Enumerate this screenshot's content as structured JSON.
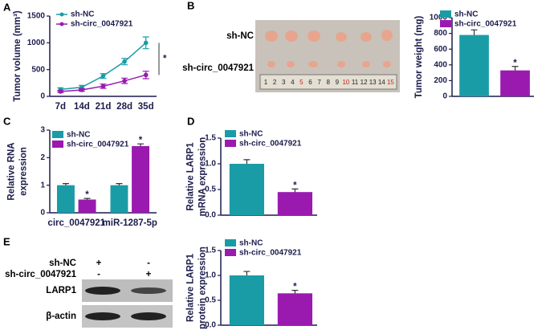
{
  "panels": [
    "A",
    "B",
    "C",
    "D",
    "E"
  ],
  "tumor_photo": {
    "rows": [
      "sh-NC",
      "sh-circ_0047921"
    ],
    "ruler": [
      "1",
      "2",
      "3",
      "4",
      "5",
      "6",
      "7",
      "8",
      "9",
      "10",
      "11",
      "12",
      "13",
      "14",
      "15"
    ]
  },
  "western_blot": {
    "conditions": [
      {
        "name": "sh-NC",
        "lanes": [
          "+",
          "-"
        ]
      },
      {
        "name": "sh-circ_0047921",
        "lanes": [
          "-",
          "+"
        ]
      }
    ],
    "bands": [
      "LARP1",
      "β-actin"
    ]
  },
  "chart_data": [
    {
      "type": "line",
      "ylabel": [
        "Tumor volume (mm³)"
      ],
      "categories": [
        "7d",
        "14d",
        "21d",
        "28d",
        "35d"
      ],
      "series": [
        {
          "name": "sh-NC",
          "color": "#1a9ca6",
          "values": [
            130,
            170,
            380,
            650,
            1000
          ],
          "errors": [
            30,
            35,
            45,
            60,
            110
          ]
        },
        {
          "name": "sh-circ_0047921",
          "color": "#9a1ab0",
          "values": [
            90,
            120,
            190,
            290,
            400
          ],
          "errors": [
            20,
            25,
            40,
            50,
            70
          ]
        }
      ],
      "annotation": "*",
      "ylim": [
        0,
        1500
      ],
      "yticks": [
        0,
        500,
        1000,
        1500
      ]
    },
    {
      "type": "bar",
      "ylabel": [
        "Tumor weight (mg)"
      ],
      "series": [
        {
          "name": "sh-NC",
          "color": "#1a9ca6",
          "values": [
            780
          ],
          "errors": [
            65
          ]
        },
        {
          "name": "sh-circ_0047921",
          "color": "#9a1ab0",
          "values": [
            330
          ],
          "errors": [
            50
          ],
          "significance": "*"
        }
      ],
      "ylim": [
        0,
        1000
      ],
      "yticks": [
        0,
        200,
        400,
        600,
        800,
        1000
      ]
    },
    {
      "type": "bar",
      "ylabel": [
        "Relative RNA",
        "expression"
      ],
      "categories": [
        "circ_0047921",
        "miR-1287-5p"
      ],
      "series": [
        {
          "name": "sh-NC",
          "color": "#1a9ca6",
          "values": [
            1.0,
            1.0
          ],
          "errors": [
            0.06,
            0.06
          ]
        },
        {
          "name": "sh-circ_0047921",
          "color": "#9a1ab0",
          "values": [
            0.48,
            2.42
          ],
          "errors": [
            0.04,
            0.08
          ],
          "significance": "*"
        }
      ],
      "ylim": [
        0,
        3
      ],
      "yticks": [
        0,
        1,
        2,
        3
      ]
    },
    {
      "type": "bar",
      "ylabel": [
        "Relative LARP1",
        "mRNA expression"
      ],
      "series": [
        {
          "name": "sh-NC",
          "color": "#1a9ca6",
          "values": [
            1.0
          ],
          "errors": [
            0.08
          ]
        },
        {
          "name": "sh-circ_0047921",
          "color": "#9a1ab0",
          "values": [
            0.45
          ],
          "errors": [
            0.06
          ],
          "significance": "*"
        }
      ],
      "ylim": [
        0,
        1.5
      ],
      "yticks": [
        {
          "value": 0,
          "label": "0.0"
        },
        0.5,
        {
          "value": 1,
          "label": "1.0"
        },
        1.5
      ]
    },
    {
      "type": "bar",
      "ylabel": [
        "Relative LARP1",
        "protein expression"
      ],
      "series": [
        {
          "name": "sh-NC",
          "color": "#1a9ca6",
          "values": [
            1.0
          ],
          "errors": [
            0.08
          ]
        },
        {
          "name": "sh-circ_0047921",
          "color": "#9a1ab0",
          "values": [
            0.64
          ],
          "errors": [
            0.06
          ],
          "significance": "*"
        }
      ],
      "ylim": [
        0,
        1.5
      ],
      "yticks": [
        {
          "value": 0,
          "label": "0.0"
        },
        0.5,
        {
          "value": 1,
          "label": "1.0"
        },
        1.5
      ]
    }
  ]
}
